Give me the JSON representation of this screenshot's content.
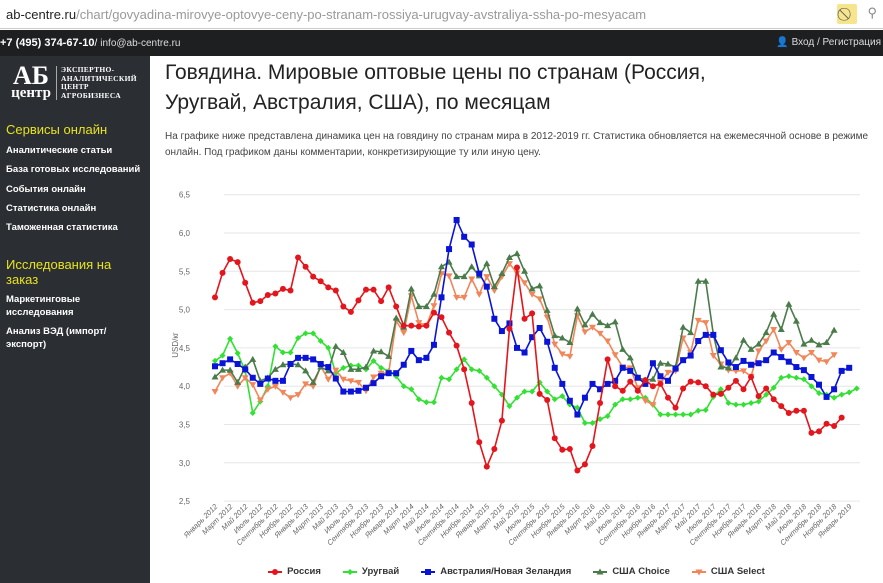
{
  "browser": {
    "url_host": "ab-centre.ru",
    "url_path": "/chart/govyadina-mirovye-optovye-ceny-po-stranam-rossiya-urugvay-avstraliya-ssha-po-mesyacam"
  },
  "topbar": {
    "phone": "+7 (495) 374-67-10",
    "separator": " / ",
    "email": "info@ab-centre.ru",
    "login": "Вход / Регистрация"
  },
  "logo": {
    "mark_top": "АБ",
    "mark_bottom": "центр",
    "lines": [
      "ЭКСПЕРТНО-",
      "АНАЛИТИЧЕСКИЙ",
      "ЦЕНТР",
      "АГРОБИЗНЕСА"
    ]
  },
  "sidebar": {
    "section1": "Сервисы онлайн",
    "items1": [
      "Аналитические статьи",
      "База готовых исследований",
      "События онлайн",
      "Статистика онлайн",
      "Таможенная статистика"
    ],
    "section2": "Исследования на заказ",
    "items2": [
      "Маркетинговые исследования",
      "Анализ ВЭД (импорт/ экспорт)"
    ]
  },
  "page": {
    "title": "Говядина. Мировые оптовые цены по странам (Россия, Уругвай, Австралия, США), по месяцам",
    "intro": "На графике ниже представлена динамика цен на говядину по странам мира в 2012-2019 гг. Статистика обновляется на ежемесячной основе в режиме онлайн. Под графиком даны комментарии, конкретизирующие ту или иную цену."
  },
  "chart_data": {
    "type": "line",
    "ylabel": "USD/кг",
    "ylim": [
      2.5,
      6.5
    ],
    "yticks": [
      "6,5",
      "6,0",
      "5,5",
      "5,0",
      "4,5",
      "4,0",
      "3,5",
      "3,0",
      "2,5"
    ],
    "ytick_values": [
      6.5,
      6.0,
      5.5,
      5.0,
      4.5,
      4.0,
      3.5,
      3.0,
      2.5
    ],
    "x_start": "Январь 2012",
    "xticks": [
      "Январь 2012",
      "Март 2012",
      "Май 2012",
      "Июль 2012",
      "Сентябрь 2012",
      "Ноябрь 2012",
      "Январь 2013",
      "Март 2013",
      "Май 2013",
      "Июль 2013",
      "Сентябрь 2013",
      "Ноябрь 2013",
      "Январь 2014",
      "Март 2014",
      "Май 2014",
      "Июль 2014",
      "Сентябрь 2014",
      "Ноябрь 2014",
      "Январь 2015",
      "Март 2015",
      "Май 2015",
      "Июль 2015",
      "Сентябрь 2015",
      "Ноябрь 2015",
      "Январь 2016",
      "Март 2016",
      "Май 2016",
      "Июль 2016",
      "Сентябрь 2016",
      "Ноябрь 2016",
      "Январь 2017",
      "Март 2017",
      "Май 2017",
      "Июль 2017",
      "Сентябрь 2017",
      "Ноябрь 2017",
      "Январь 2018",
      "Март 2018",
      "Май 2018",
      "Июль 2018",
      "Сентябрь 2018",
      "Ноябрь 2018",
      "Январь 2019"
    ],
    "legend_position": "bottom",
    "grid": true,
    "series": [
      {
        "name": "Россия",
        "color": "#e3161d",
        "marker": "circle",
        "values": [
          5.16,
          5.48,
          5.66,
          5.62,
          5.35,
          5.09,
          5.11,
          5.19,
          5.21,
          5.27,
          5.25,
          5.68,
          5.56,
          5.43,
          5.37,
          5.29,
          5.25,
          5.04,
          4.97,
          5.12,
          5.26,
          5.26,
          5.11,
          5.29,
          5.04,
          4.79,
          4.79,
          4.78,
          4.79,
          4.96,
          4.9,
          4.7,
          4.53,
          4.22,
          3.78,
          3.27,
          2.95,
          3.18,
          3.55,
          4.75,
          5.55,
          4.88,
          4.95,
          3.9,
          3.82,
          3.32,
          3.17,
          3.18,
          2.9,
          2.98,
          3.22,
          3.78,
          4.35,
          4.0,
          3.94,
          4.06,
          3.94,
          4.08,
          4.0,
          4.03,
          3.85,
          3.72,
          3.97,
          4.06,
          4.05,
          4.0,
          3.89,
          3.9,
          3.98,
          4.07,
          3.96,
          4.12,
          3.87,
          3.97,
          3.83,
          3.74,
          3.65,
          3.68,
          3.68,
          3.39,
          3.41,
          3.51,
          3.48,
          3.59
        ]
      },
      {
        "name": "Уругвай",
        "color": "#33e033",
        "marker": "diamond",
        "values": [
          4.33,
          4.4,
          4.62,
          4.43,
          4.2,
          3.65,
          3.8,
          4.0,
          4.52,
          4.44,
          4.44,
          4.63,
          4.69,
          4.69,
          4.59,
          4.5,
          4.17,
          4.24,
          4.27,
          4.27,
          4.22,
          4.33,
          4.24,
          4.2,
          4.13,
          4.0,
          3.96,
          3.83,
          3.79,
          3.79,
          4.11,
          4.09,
          4.22,
          4.35,
          4.22,
          4.2,
          4.11,
          4.0,
          3.89,
          3.74,
          3.85,
          3.93,
          3.93,
          4.05,
          3.93,
          3.83,
          3.87,
          3.76,
          3.72,
          3.52,
          3.52,
          3.57,
          3.61,
          3.76,
          3.83,
          3.83,
          3.85,
          3.85,
          3.76,
          3.63,
          3.63,
          3.63,
          3.63,
          3.63,
          3.68,
          3.69,
          3.86,
          3.96,
          3.78,
          3.76,
          3.76,
          3.78,
          3.8,
          3.89,
          3.98,
          4.11,
          4.13,
          4.11,
          4.09,
          4.0,
          3.91,
          3.89,
          3.85,
          3.89,
          3.92,
          3.97
        ]
      },
      {
        "name": "Австралия/Новая Зеландия",
        "color": "#0a14d6",
        "marker": "square",
        "values": [
          4.26,
          4.3,
          4.35,
          4.29,
          4.22,
          4.11,
          4.03,
          4.1,
          4.07,
          4.07,
          4.29,
          4.37,
          4.37,
          4.35,
          4.29,
          4.25,
          4.1,
          3.93,
          3.93,
          3.94,
          3.98,
          4.04,
          4.13,
          4.17,
          4.17,
          4.28,
          4.46,
          4.34,
          4.37,
          4.54,
          5.16,
          5.79,
          6.17,
          5.95,
          5.85,
          5.47,
          5.3,
          4.88,
          4.72,
          4.82,
          4.5,
          4.44,
          4.64,
          4.76,
          4.58,
          4.24,
          4.03,
          3.81,
          3.63,
          3.85,
          4.03,
          3.96,
          4.03,
          4.07,
          4.24,
          4.2,
          4.11,
          4.03,
          4.3,
          4.13,
          4.07,
          4.23,
          4.34,
          4.4,
          4.59,
          4.67,
          4.67,
          4.47,
          4.31,
          4.25,
          4.33,
          4.28,
          4.3,
          4.34,
          4.44,
          4.38,
          4.32,
          4.25,
          4.21,
          4.12,
          4.02,
          3.86,
          3.96,
          4.2,
          4.24
        ]
      },
      {
        "name": "США Choice",
        "color": "#4b7b4b",
        "marker": "triangle",
        "values": [
          4.12,
          4.21,
          4.21,
          4.05,
          4.25,
          4.35,
          4.07,
          4.11,
          4.22,
          4.28,
          4.29,
          4.28,
          4.2,
          4.05,
          4.25,
          4.2,
          4.52,
          4.44,
          4.22,
          4.22,
          4.25,
          4.46,
          4.45,
          4.39,
          4.89,
          4.77,
          5.27,
          5.04,
          5.04,
          5.2,
          5.56,
          5.62,
          5.43,
          5.43,
          5.56,
          5.44,
          5.6,
          5.3,
          5.47,
          5.68,
          5.73,
          5.5,
          5.27,
          5.31,
          4.99,
          4.66,
          4.63,
          4.57,
          5.01,
          4.8,
          4.94,
          4.83,
          4.79,
          4.84,
          4.48,
          4.37,
          4.11,
          4.08,
          4.09,
          4.3,
          4.29,
          4.25,
          4.77,
          4.7,
          5.37,
          5.37,
          4.68,
          4.25,
          4.24,
          4.37,
          4.6,
          4.48,
          4.55,
          4.7,
          4.94,
          4.74,
          5.07,
          4.85,
          4.55,
          4.6,
          4.54,
          4.57,
          4.73
        ]
      },
      {
        "name": "США Select",
        "color": "#f0865a",
        "marker": "triangle-down",
        "values": [
          3.93,
          4.11,
          4.17,
          4.0,
          4.11,
          4.02,
          3.82,
          3.96,
          4.0,
          3.92,
          3.85,
          3.89,
          4.03,
          4.0,
          4.26,
          4.09,
          4.21,
          4.09,
          4.07,
          4.05,
          3.94,
          4.12,
          4.17,
          4.17,
          4.85,
          4.7,
          5.18,
          4.83,
          4.79,
          5.05,
          5.47,
          5.44,
          5.16,
          5.16,
          5.4,
          5.2,
          5.43,
          5.25,
          5.43,
          5.6,
          5.48,
          5.35,
          5.2,
          5.14,
          4.9,
          4.55,
          4.42,
          4.39,
          4.92,
          4.71,
          4.77,
          4.69,
          4.59,
          4.41,
          4.25,
          4.24,
          3.98,
          3.81,
          3.76,
          4.05,
          4.18,
          4.2,
          4.63,
          4.44,
          4.86,
          4.83,
          4.4,
          4.29,
          4.21,
          4.2,
          4.2,
          4.13,
          4.46,
          4.59,
          4.74,
          4.48,
          4.57,
          4.44,
          4.37,
          4.44,
          4.34,
          4.32,
          4.41
        ]
      }
    ]
  }
}
